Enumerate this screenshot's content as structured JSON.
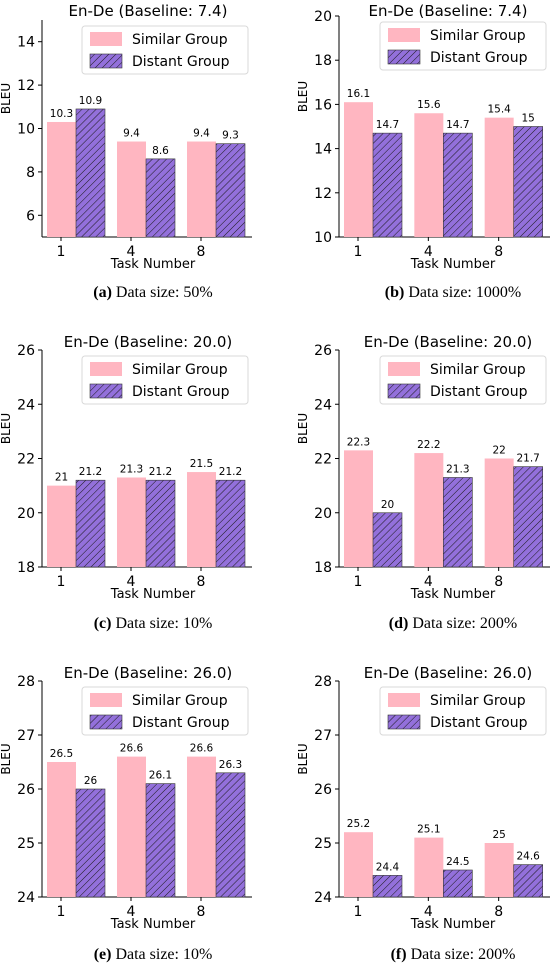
{
  "figure": {
    "colors": {
      "similar": "#ffb6c1",
      "distant": "#9370db",
      "hatch": "#1a1a1a",
      "legend_border": "#d9d9d9",
      "text": "#000000"
    },
    "icons": {
      "similar_swatch": "pink-rectangle-swatch",
      "distant_swatch": "purple-hatched-swatch"
    }
  },
  "chart_data": [
    {
      "id": "a",
      "type": "bar",
      "title": "En-De (Baseline: 7.4)",
      "xlabel": "Task Number",
      "ylabel": "BLEU",
      "categories": [
        "1",
        "4",
        "8"
      ],
      "ylim": [
        5,
        15
      ],
      "yticks": [
        6,
        8,
        10,
        12,
        14
      ],
      "series": [
        {
          "name": "Similar Group",
          "values": [
            10.3,
            9.4,
            9.4
          ]
        },
        {
          "name": "Distant Group",
          "values": [
            10.9,
            8.6,
            9.3
          ]
        }
      ],
      "data_labels": [
        [
          "10.3",
          "9.4",
          "9.4"
        ],
        [
          "10.9",
          "8.6",
          "9.3"
        ]
      ],
      "legend": "top-right",
      "grid": false,
      "caption_tag": "(a)",
      "caption": "Data size: 50%"
    },
    {
      "id": "b",
      "type": "bar",
      "title": "En-De (Baseline: 7.4)",
      "xlabel": "Task Number",
      "ylabel": "BLEU",
      "categories": [
        "1",
        "4",
        "8"
      ],
      "ylim": [
        10,
        20
      ],
      "yticks": [
        10,
        12,
        14,
        16,
        18,
        20
      ],
      "series": [
        {
          "name": "Similar Group",
          "values": [
            16.1,
            15.6,
            15.4
          ]
        },
        {
          "name": "Distant Group",
          "values": [
            14.7,
            14.7,
            15.0
          ]
        }
      ],
      "data_labels": [
        [
          "16.1",
          "15.6",
          "15.4"
        ],
        [
          "14.7",
          "14.7",
          "15"
        ]
      ],
      "legend": "top-right",
      "grid": false,
      "caption_tag": "(b)",
      "caption": "Data size: 1000%"
    },
    {
      "id": "c",
      "type": "bar",
      "title": "En-De (Baseline: 20.0)",
      "xlabel": "Task Number",
      "ylabel": "BLEU",
      "categories": [
        "1",
        "4",
        "8"
      ],
      "ylim": [
        18,
        26
      ],
      "yticks": [
        18,
        20,
        22,
        24,
        26
      ],
      "series": [
        {
          "name": "Similar Group",
          "values": [
            21.0,
            21.3,
            21.5
          ]
        },
        {
          "name": "Distant Group",
          "values": [
            21.2,
            21.2,
            21.2
          ]
        }
      ],
      "data_labels": [
        [
          "21",
          "21.3",
          "21.5"
        ],
        [
          "21.2",
          "21.2",
          "21.2"
        ]
      ],
      "legend": "top-right",
      "grid": false,
      "caption_tag": "(c)",
      "caption": "Data size: 10%"
    },
    {
      "id": "d",
      "type": "bar",
      "title": "En-De (Baseline: 20.0)",
      "xlabel": "Task Number",
      "ylabel": "BLEU",
      "categories": [
        "1",
        "4",
        "8"
      ],
      "ylim": [
        18,
        26
      ],
      "yticks": [
        18,
        20,
        22,
        24,
        26
      ],
      "series": [
        {
          "name": "Similar Group",
          "values": [
            22.3,
            22.2,
            22.0
          ]
        },
        {
          "name": "Distant Group",
          "values": [
            20.0,
            21.3,
            21.7
          ]
        }
      ],
      "data_labels": [
        [
          "22.3",
          "22.2",
          "22"
        ],
        [
          "20",
          "21.3",
          "21.7"
        ]
      ],
      "legend": "top-right",
      "grid": false,
      "caption_tag": "(d)",
      "caption": "Data size: 200%"
    },
    {
      "id": "e",
      "type": "bar",
      "title": "En-De (Baseline: 26.0)",
      "xlabel": "Task Number",
      "ylabel": "BLEU",
      "categories": [
        "1",
        "4",
        "8"
      ],
      "ylim": [
        24,
        28
      ],
      "yticks": [
        24,
        25,
        26,
        27,
        28
      ],
      "series": [
        {
          "name": "Similar Group",
          "values": [
            26.5,
            26.6,
            26.6
          ]
        },
        {
          "name": "Distant Group",
          "values": [
            26.0,
            26.1,
            26.3
          ]
        }
      ],
      "data_labels": [
        [
          "26.5",
          "26.6",
          "26.6"
        ],
        [
          "26",
          "26.1",
          "26.3"
        ]
      ],
      "legend": "top-right",
      "grid": false,
      "caption_tag": "(e)",
      "caption": "Data size: 10%"
    },
    {
      "id": "f",
      "type": "bar",
      "title": "En-De (Baseline: 26.0)",
      "xlabel": "Task Number",
      "ylabel": "BLEU",
      "categories": [
        "1",
        "4",
        "8"
      ],
      "ylim": [
        24,
        28
      ],
      "yticks": [
        24,
        25,
        26,
        27,
        28
      ],
      "series": [
        {
          "name": "Similar Group",
          "values": [
            25.2,
            25.1,
            25.0
          ]
        },
        {
          "name": "Distant Group",
          "values": [
            24.4,
            24.5,
            24.6
          ]
        }
      ],
      "data_labels": [
        [
          "25.2",
          "25.1",
          "25"
        ],
        [
          "24.4",
          "24.5",
          "24.6"
        ]
      ],
      "legend": "top-right",
      "grid": false,
      "caption_tag": "(f)",
      "caption": "Data size: 200%"
    }
  ]
}
